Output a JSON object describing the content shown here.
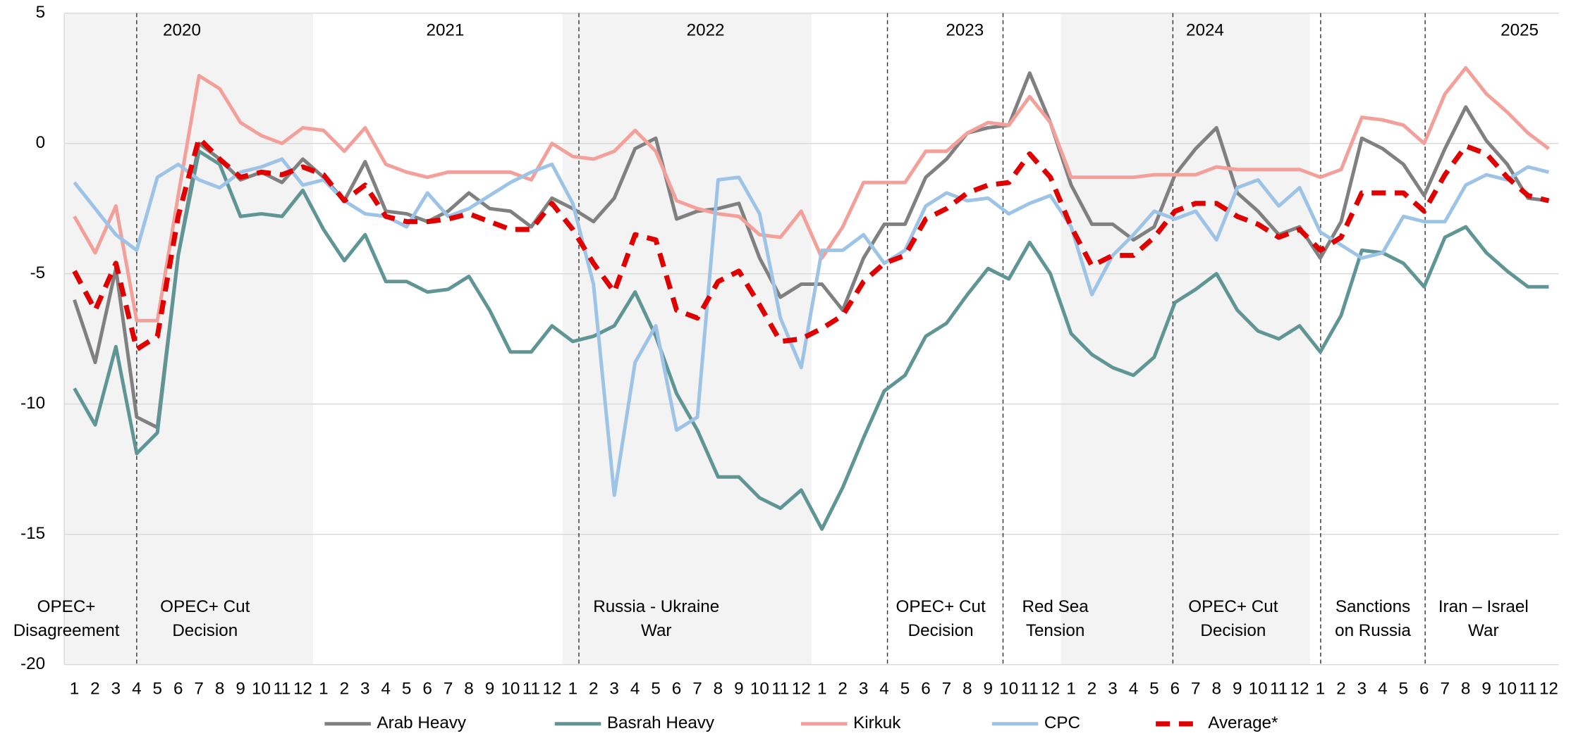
{
  "chart_data": {
    "type": "line",
    "categories": [
      "1",
      "2",
      "3",
      "4",
      "5",
      "6",
      "7",
      "8",
      "9",
      "10",
      "11",
      "12",
      "1",
      "2",
      "3",
      "4",
      "5",
      "6",
      "7",
      "8",
      "9",
      "10",
      "11",
      "12",
      "1",
      "2",
      "3",
      "4",
      "5",
      "6",
      "7",
      "8",
      "9",
      "10",
      "11",
      "12",
      "1",
      "2",
      "3",
      "4",
      "5",
      "6",
      "7",
      "8",
      "9",
      "10",
      "11",
      "12",
      "1",
      "2",
      "3",
      "4",
      "5",
      "6",
      "7",
      "8",
      "9",
      "10",
      "11",
      "12",
      "1",
      "2",
      "3",
      "4",
      "5",
      "6",
      "7",
      "8",
      "9",
      "10",
      "11",
      "12"
    ],
    "year_labels": [
      "2020",
      "2021",
      "2022",
      "2023",
      "2024",
      "2025"
    ],
    "annotations": [
      {
        "lines": [
          "OPEC+",
          "Disagreement"
        ]
      },
      {
        "lines": [
          "OPEC+ Cut",
          "Decision"
        ]
      },
      {
        "lines": [
          "Russia - Ukraine",
          "War"
        ]
      },
      {
        "lines": [
          "OPEC+ Cut",
          "Decision"
        ]
      },
      {
        "lines": [
          "Red Sea",
          "Tension"
        ]
      },
      {
        "lines": [
          "OPEC+ Cut",
          "Decision"
        ]
      },
      {
        "lines": [
          "Sanctions",
          "on Russia"
        ]
      },
      {
        "lines": [
          "Iran – Israel",
          "War"
        ]
      }
    ],
    "ylim": [
      -20,
      5
    ],
    "yticks": [
      -20,
      -15,
      -10,
      -5,
      0,
      5
    ],
    "grid": true,
    "legend": "bottom",
    "series": [
      {
        "name": "Arab Heavy",
        "color": "#808080",
        "values": [
          -6.0,
          -8.4,
          -4.8,
          -10.5,
          -10.9,
          -4.3,
          0.0,
          -0.6,
          -1.4,
          -1.1,
          -1.5,
          -0.6,
          -1.3,
          -2.2,
          -0.7,
          -2.6,
          -2.7,
          -3.0,
          -2.6,
          -1.9,
          -2.5,
          -2.6,
          -3.2,
          -2.1,
          -2.5,
          -3.0,
          -2.1,
          -0.2,
          0.2,
          -2.9,
          -2.6,
          -2.5,
          -2.3,
          -4.4,
          -5.9,
          -5.4,
          -5.4,
          -6.4,
          -4.4,
          -3.1,
          -3.1,
          -1.3,
          -0.6,
          0.4,
          0.6,
          0.7,
          2.7,
          0.8,
          -1.6,
          -3.1,
          -3.1,
          -3.7,
          -3.2,
          -1.2,
          -0.2,
          0.6,
          -1.9,
          -2.6,
          -3.5,
          -3.2,
          -4.4,
          -3.0,
          0.2,
          -0.2,
          -0.8,
          -2.0,
          -0.2,
          1.4,
          0.1,
          -0.8,
          -2.1,
          -2.2
        ]
      },
      {
        "name": "Basrah Heavy",
        "color": "#5f9595",
        "values": [
          -9.4,
          -10.8,
          -7.8,
          -11.9,
          -11.1,
          -4.3,
          -0.3,
          -0.8,
          -2.8,
          -2.7,
          -2.8,
          -1.8,
          -3.3,
          -4.5,
          -3.5,
          -5.3,
          -5.3,
          -5.7,
          -5.6,
          -5.1,
          -6.4,
          -8.0,
          -8.0,
          -7.0,
          -7.6,
          -7.4,
          -7.0,
          -5.7,
          -7.4,
          -9.6,
          -11.0,
          -12.8,
          -12.8,
          -13.6,
          -14.0,
          -13.3,
          -14.8,
          -13.2,
          -11.3,
          -9.5,
          -8.9,
          -7.4,
          -6.9,
          -5.8,
          -4.8,
          -5.2,
          -3.8,
          -5.0,
          -7.3,
          -8.1,
          -8.6,
          -8.9,
          -8.2,
          -6.1,
          -5.6,
          -5.0,
          -6.4,
          -7.2,
          -7.5,
          -7.0,
          -8.0,
          -6.6,
          -4.1,
          -4.2,
          -4.6,
          -5.5,
          -3.6,
          -3.2,
          -4.2,
          -4.9,
          -5.5,
          -5.5
        ]
      },
      {
        "name": "Kirkuk",
        "color": "#f4a09a",
        "values": [
          -2.8,
          -4.2,
          -2.4,
          -6.8,
          -6.8,
          -2.0,
          2.6,
          2.1,
          0.8,
          0.3,
          0.0,
          0.6,
          0.5,
          -0.3,
          0.6,
          -0.8,
          -1.1,
          -1.3,
          -1.1,
          -1.1,
          -1.1,
          -1.1,
          -1.4,
          0.0,
          -0.5,
          -0.6,
          -0.3,
          0.5,
          -0.3,
          -2.2,
          -2.5,
          -2.7,
          -2.8,
          -3.5,
          -3.6,
          -2.6,
          -4.4,
          -3.2,
          -1.5,
          -1.5,
          -1.5,
          -0.3,
          -0.3,
          0.4,
          0.8,
          0.7,
          1.8,
          0.8,
          -1.3,
          -1.3,
          -1.3,
          -1.3,
          -1.2,
          -1.2,
          -1.2,
          -0.9,
          -1.0,
          -1.0,
          -1.0,
          -1.0,
          -1.3,
          -1.0,
          1.0,
          0.9,
          0.7,
          0.0,
          1.9,
          2.9,
          1.9,
          1.2,
          0.4,
          -0.2
        ]
      },
      {
        "name": "CPC",
        "color": "#9dc3e6",
        "values": [
          -1.5,
          -2.5,
          -3.5,
          -4.1,
          -1.3,
          -0.8,
          -1.4,
          -1.7,
          -1.1,
          -0.9,
          -0.6,
          -1.6,
          -1.4,
          -2.2,
          -2.7,
          -2.8,
          -3.2,
          -1.9,
          -2.8,
          -2.5,
          -2.0,
          -1.5,
          -1.1,
          -0.8,
          -2.3,
          -5.4,
          -13.5,
          -8.4,
          -7.0,
          -11.0,
          -10.5,
          -1.4,
          -1.3,
          -2.7,
          -6.7,
          -8.6,
          -4.1,
          -4.1,
          -3.5,
          -4.6,
          -4.1,
          -2.4,
          -1.9,
          -2.2,
          -2.1,
          -2.7,
          -2.3,
          -2.0,
          -3.2,
          -5.8,
          -4.3,
          -3.5,
          -2.6,
          -2.9,
          -2.6,
          -3.7,
          -1.7,
          -1.4,
          -2.4,
          -1.7,
          -3.4,
          -3.9,
          -4.4,
          -4.2,
          -2.8,
          -3.0,
          -3.0,
          -1.6,
          -1.2,
          -1.4,
          -0.9,
          -1.1
        ]
      },
      {
        "name": "Average*",
        "color": "#e00000",
        "dashed": true,
        "values": [
          -4.9,
          -6.4,
          -4.6,
          -7.9,
          -7.4,
          -2.8,
          0.2,
          -0.6,
          -1.3,
          -1.1,
          -1.2,
          -0.9,
          -1.2,
          -2.2,
          -1.6,
          -2.8,
          -3.0,
          -3.0,
          -2.9,
          -2.7,
          -3.0,
          -3.3,
          -3.3,
          -2.3,
          -3.3,
          -4.6,
          -5.7,
          -3.5,
          -3.7,
          -6.4,
          -6.7,
          -5.3,
          -4.9,
          -6.2,
          -7.6,
          -7.5,
          -7.1,
          -6.6,
          -5.3,
          -4.6,
          -4.3,
          -2.9,
          -2.5,
          -1.9,
          -1.6,
          -1.5,
          -0.4,
          -1.3,
          -3.2,
          -4.7,
          -4.3,
          -4.3,
          -3.6,
          -2.6,
          -2.3,
          -2.3,
          -2.8,
          -3.1,
          -3.6,
          -3.3,
          -4.1,
          -3.6,
          -1.9,
          -1.9,
          -1.9,
          -2.6,
          -1.2,
          -0.1,
          -0.4,
          -1.3,
          -2.0,
          -2.2
        ]
      }
    ]
  }
}
